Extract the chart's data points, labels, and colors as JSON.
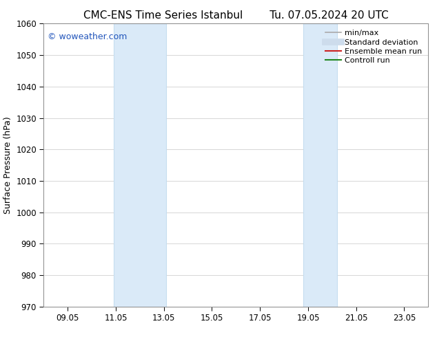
{
  "title_left": "CMC-ENS Time Series Istanbul",
  "title_right": "Tu. 07.05.2024 20 UTC",
  "ylabel": "Surface Pressure (hPa)",
  "xlim": [
    8.0,
    24.0
  ],
  "ylim": [
    970,
    1060
  ],
  "yticks": [
    970,
    980,
    990,
    1000,
    1010,
    1020,
    1030,
    1040,
    1050,
    1060
  ],
  "xtick_labels": [
    "09.05",
    "11.05",
    "13.05",
    "15.05",
    "17.05",
    "19.05",
    "21.05",
    "23.05"
  ],
  "xtick_positions": [
    9,
    11,
    13,
    15,
    17,
    19,
    21,
    23
  ],
  "shaded_bands": [
    {
      "x_start": 10.9,
      "x_end": 13.1
    },
    {
      "x_start": 18.8,
      "x_end": 20.2
    }
  ],
  "shaded_color": "#daeaf8",
  "shaded_edge_color": "#c5ddf0",
  "bg_color": "#ffffff",
  "grid_color": "#d0d0d0",
  "watermark_text": "© woweather.com",
  "watermark_color": "#2255bb",
  "legend_items": [
    {
      "label": "min/max",
      "color": "#aaaaaa",
      "lw": 1.2
    },
    {
      "label": "Standard deviation",
      "color": "#cddcec",
      "lw": 7
    },
    {
      "label": "Ensemble mean run",
      "color": "#cc2222",
      "lw": 1.5
    },
    {
      "label": "Controll run",
      "color": "#228822",
      "lw": 1.5
    }
  ],
  "title_fontsize": 11,
  "tick_fontsize": 8.5,
  "ylabel_fontsize": 9,
  "legend_fontsize": 8
}
